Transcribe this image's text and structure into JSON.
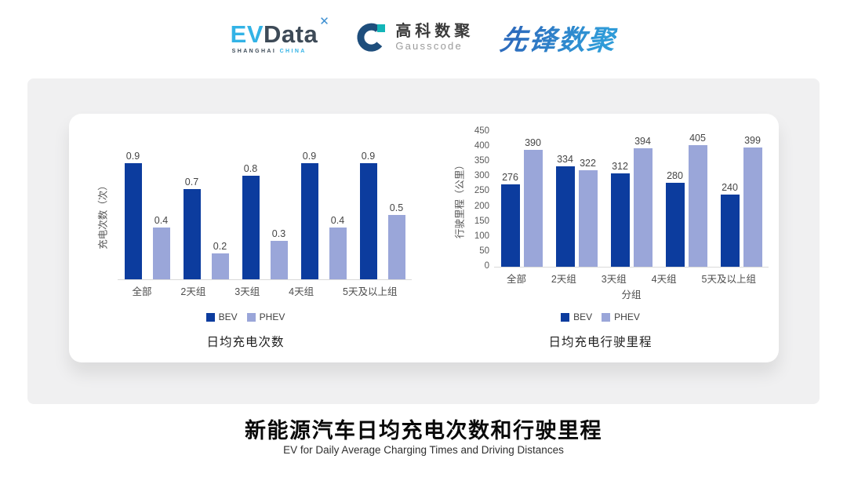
{
  "header": {
    "evdata": {
      "ev": "EV",
      "data": "Data",
      "star_icon": "✕",
      "sub_left": "SHANGHAI",
      "sub_right": "CHINA"
    },
    "gausscode": {
      "name_cn": "高科数聚",
      "name_en": "Gausscode"
    },
    "pioneer": {
      "name": "先锋数聚"
    }
  },
  "colors": {
    "bev": "#0c3c9e",
    "phev": "#9aa6d9",
    "evdata_lightblue": "#33b3e6",
    "evdata_slate": "#3d4a57",
    "gausscode_blue": "#1e4e7c",
    "gausscode_teal": "#13b5b8",
    "pioneer_blue": "#2e7fc5",
    "panel_gray": "#f0f0f1"
  },
  "chart_data": [
    {
      "type": "bar",
      "title": "日均充电次数",
      "categories": [
        "全部",
        "2天组",
        "3天组",
        "4天组",
        "5天及以上组"
      ],
      "series": [
        {
          "name": "BEV",
          "color": "#0c3c9e",
          "values": [
            0.9,
            0.7,
            0.8,
            0.9,
            0.9
          ]
        },
        {
          "name": "PHEV",
          "color": "#9aa6d9",
          "values": [
            0.4,
            0.2,
            0.3,
            0.4,
            0.5
          ]
        }
      ],
      "xlabel": "",
      "ylabel": "充电次数（次）",
      "ylim": [
        0,
        1.0
      ],
      "grid": false,
      "data_labels": true,
      "legend_position": "bottom"
    },
    {
      "type": "bar",
      "title": "日均充电行驶里程",
      "categories": [
        "全部",
        "2天组",
        "3天组",
        "4天组",
        "5天及以上组"
      ],
      "series": [
        {
          "name": "BEV",
          "color": "#0c3c9e",
          "values": [
            276,
            334,
            312,
            280,
            240
          ]
        },
        {
          "name": "PHEV",
          "color": "#9aa6d9",
          "values": [
            390,
            322,
            394,
            405,
            399
          ]
        }
      ],
      "xlabel": "分组",
      "ylabel": "行驶里程（公里）",
      "ylim": [
        0,
        450
      ],
      "yticks": [
        0,
        50,
        100,
        150,
        200,
        250,
        300,
        350,
        400,
        450
      ],
      "grid": false,
      "data_labels": true,
      "legend_position": "bottom"
    }
  ],
  "footer": {
    "title": "新能源汽车日均充电次数和行驶里程",
    "subtitle": "EV for Daily Average Charging Times and Driving Distances"
  }
}
